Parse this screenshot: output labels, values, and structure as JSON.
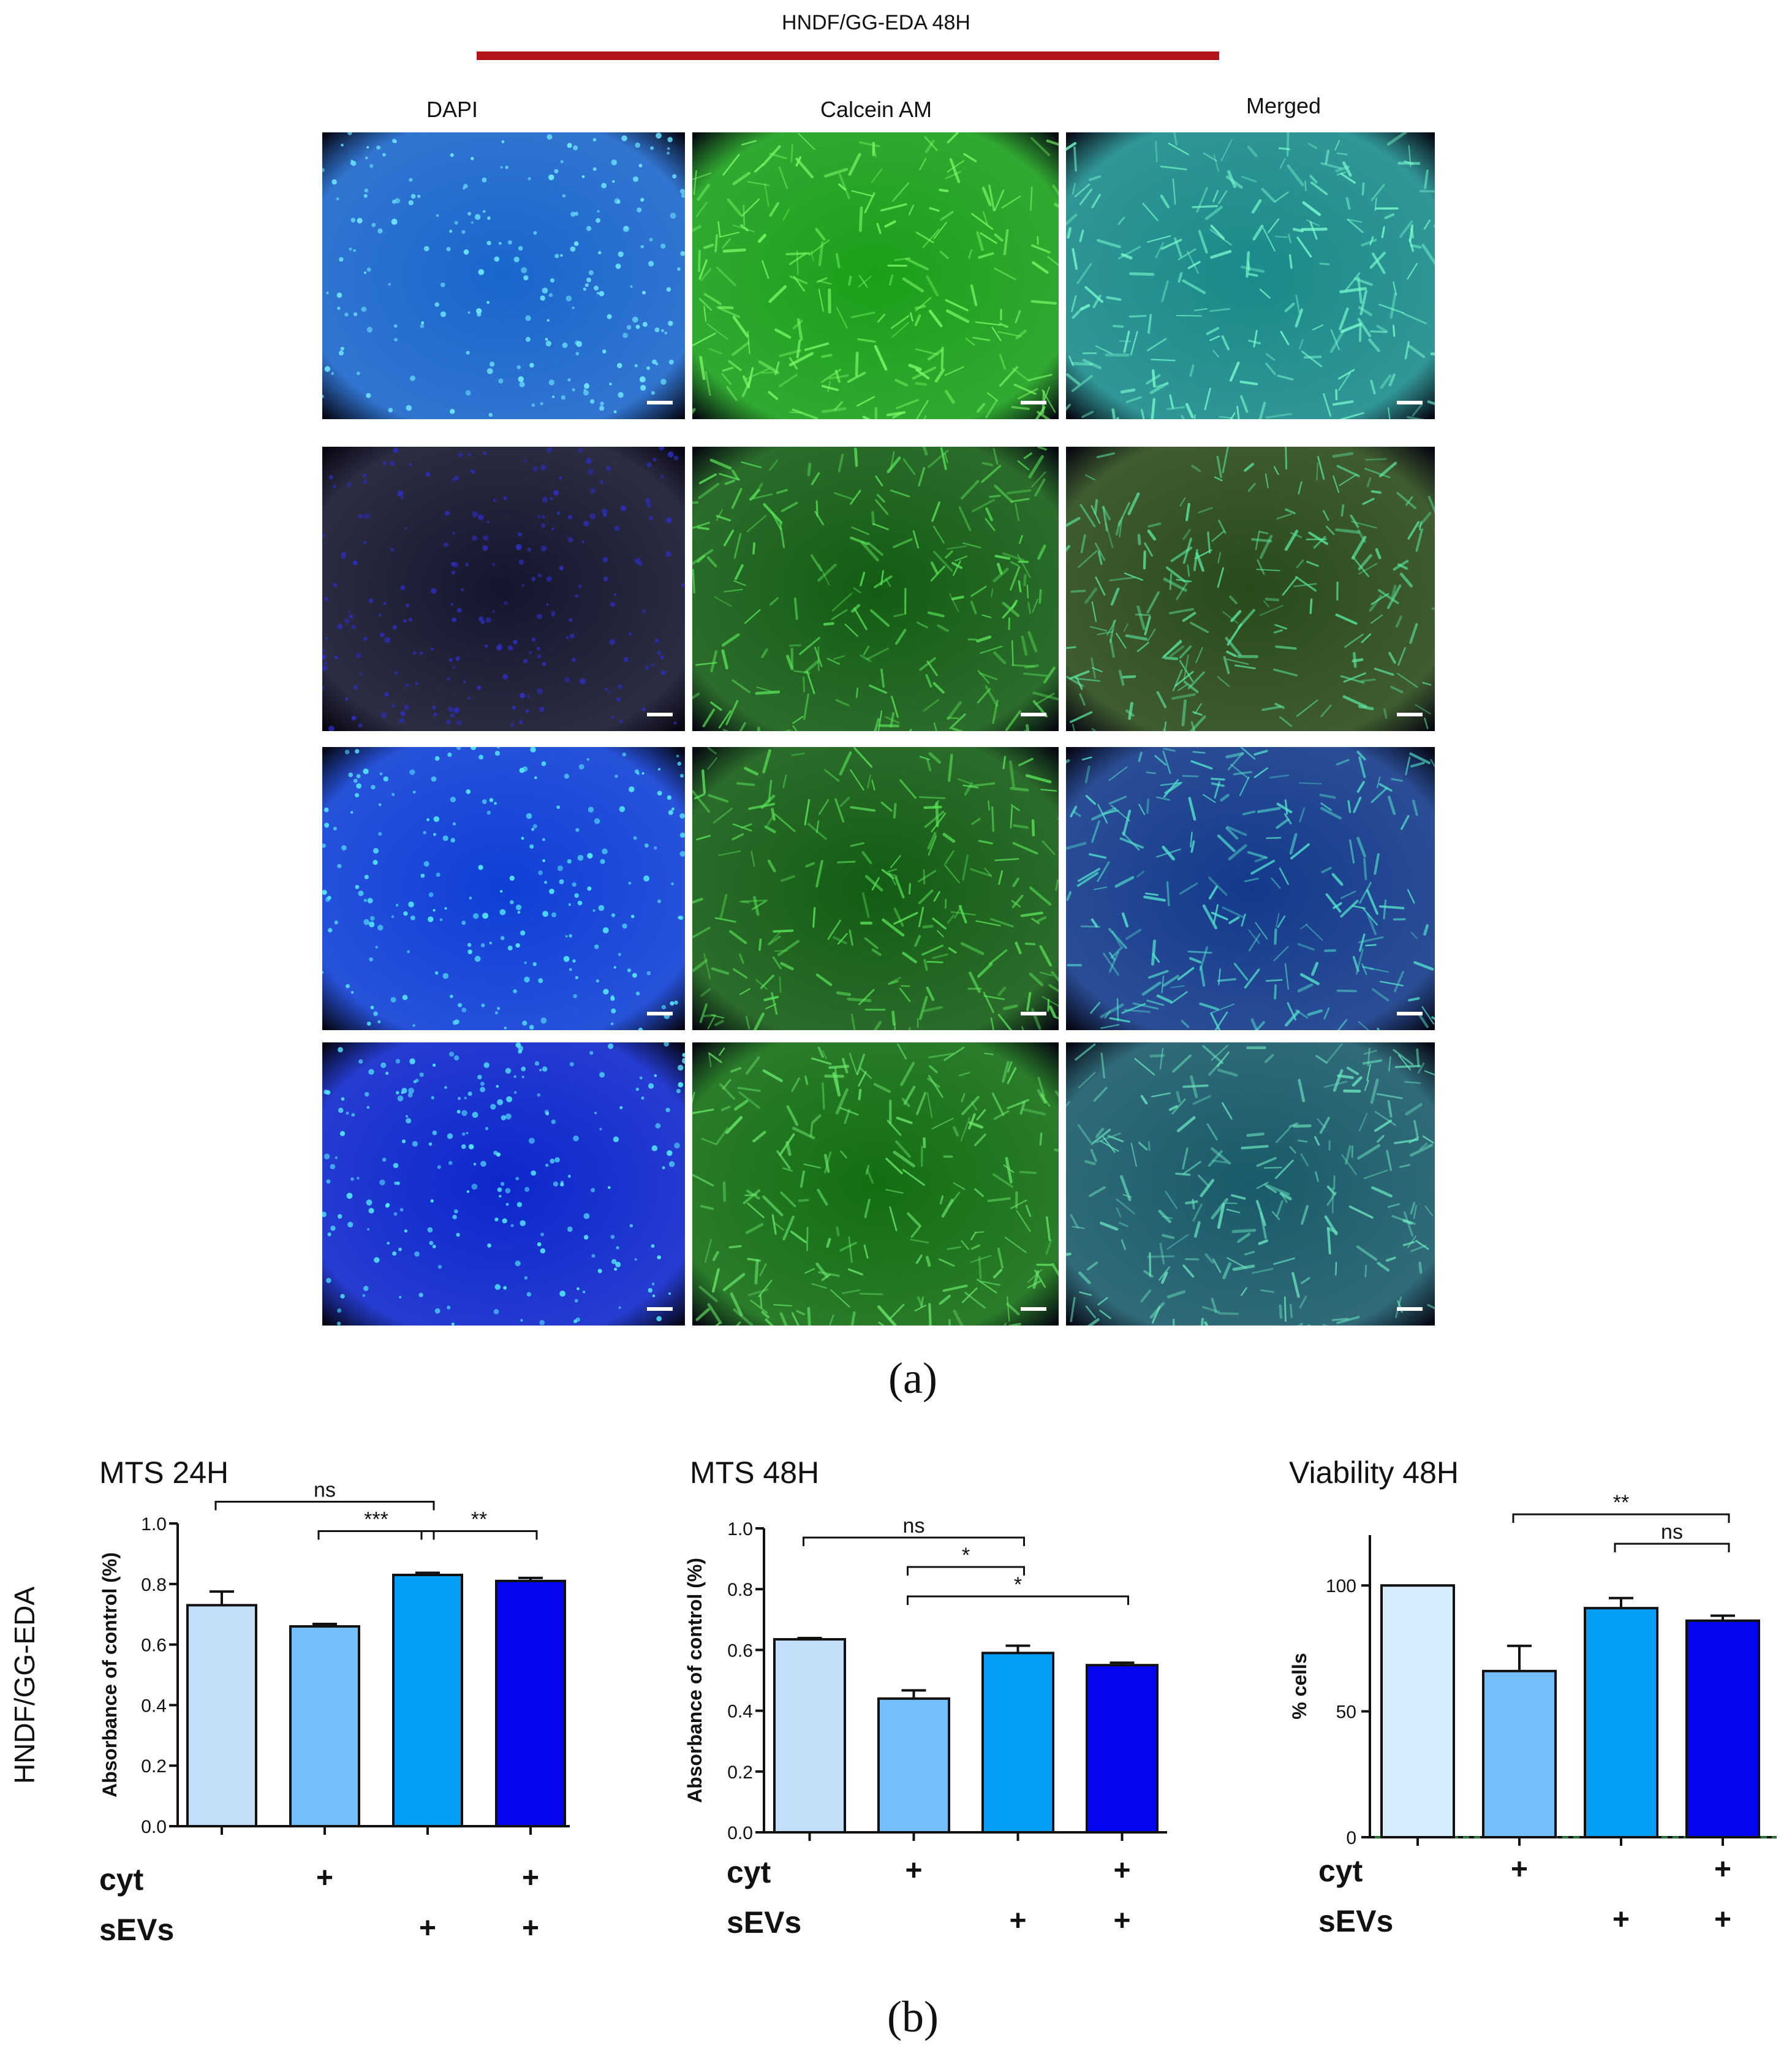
{
  "header": {
    "title": "HNDF/GG-EDA 48H",
    "columns": [
      "DAPI",
      "Calcein AM",
      "Merged"
    ],
    "accent_color": "#b3141b"
  },
  "panel_labels": {
    "a": "(a)",
    "b": "(b)"
  },
  "side_label": "HNDF/GG-EDA",
  "image_grid": {
    "rows": [
      {
        "cells": [
          {
            "channel": "DAPI",
            "bg": "#1a66cc",
            "dot": "#6fe8ff"
          },
          {
            "channel": "Calcein AM",
            "bg": "#1aa01a",
            "dot": "#7dff6a"
          },
          {
            "channel": "Merged",
            "bg": "#1a8a8a",
            "dot": "#7affd0"
          }
        ]
      },
      {
        "cells": [
          {
            "channel": "DAPI",
            "bg": "#15152e",
            "dot": "#2d2dbb"
          },
          {
            "channel": "Calcein AM",
            "bg": "#145c14",
            "dot": "#5ae85a"
          },
          {
            "channel": "Merged",
            "bg": "#2a4a1a",
            "dot": "#5ae8a0"
          }
        ]
      },
      {
        "cells": [
          {
            "channel": "DAPI",
            "bg": "#0f3fd6",
            "dot": "#55e8ff"
          },
          {
            "channel": "Calcein AM",
            "bg": "#145c14",
            "dot": "#5ae85a"
          },
          {
            "channel": "Merged",
            "bg": "#133a8a",
            "dot": "#55e8d0"
          }
        ]
      },
      {
        "cells": [
          {
            "channel": "DAPI",
            "bg": "#0d27cc",
            "dot": "#55e8ff"
          },
          {
            "channel": "Calcein AM",
            "bg": "#136e13",
            "dot": "#6ae86a"
          },
          {
            "channel": "Merged",
            "bg": "#1a5a6a",
            "dot": "#6ae8c0"
          }
        ]
      }
    ]
  },
  "chart_data": [
    {
      "type": "bar",
      "title": "MTS 24H",
      "ylabel": "Absorbance of control (%)",
      "ylim": [
        0,
        1.0
      ],
      "yticks": [
        "0.0",
        "0.2",
        "0.4",
        "0.6",
        "0.8",
        "1.0"
      ],
      "values": [
        0.73,
        0.66,
        0.83,
        0.81
      ],
      "errors": [
        0.045,
        0.008,
        0.007,
        0.01
      ],
      "colors": [
        "#c2def8",
        "#74befa",
        "#049ef8",
        "#0505f0"
      ],
      "factors": [
        {
          "label": "cyt",
          "marks": [
            "",
            "+",
            "",
            "+"
          ]
        },
        {
          "label": "sEVs",
          "marks": [
            "",
            "",
            "+",
            "+"
          ]
        }
      ],
      "brackets": [
        {
          "from": 0,
          "to": 2,
          "label": "ns",
          "level": 2
        },
        {
          "from": 1,
          "to": 2,
          "label": "***",
          "level": 1
        },
        {
          "from": 2,
          "to": 3,
          "label": "**",
          "level": 1
        }
      ]
    },
    {
      "type": "bar",
      "title": "MTS 48H",
      "ylabel": "Absorbance of control (%)",
      "ylim": [
        0,
        1.0
      ],
      "yticks": [
        "0.0",
        "0.2",
        "0.4",
        "0.6",
        "0.8",
        "1.0"
      ],
      "values": [
        0.635,
        0.44,
        0.59,
        0.55
      ],
      "errors": [
        0.004,
        0.027,
        0.024,
        0.008
      ],
      "colors": [
        "#c2def8",
        "#74befa",
        "#049ef8",
        "#0505f0"
      ],
      "factors": [
        {
          "label": "cyt",
          "marks": [
            "",
            "+",
            "",
            "+"
          ]
        },
        {
          "label": "sEVs",
          "marks": [
            "",
            "",
            "+",
            "+"
          ]
        }
      ],
      "brackets": [
        {
          "from": 0,
          "to": 2,
          "label": "ns",
          "level": 3
        },
        {
          "from": 1,
          "to": 2,
          "label": "*",
          "level": 2
        },
        {
          "from": 1,
          "to": 3,
          "label": "*",
          "level": 1
        }
      ]
    },
    {
      "type": "bar",
      "title": "Viability 48H",
      "ylabel": "% cells",
      "ylim": [
        0,
        120
      ],
      "yticks": [
        "0",
        "50",
        "100"
      ],
      "ytick_values": [
        0,
        50,
        100
      ],
      "values": [
        100,
        66,
        91,
        86
      ],
      "errors": [
        0,
        10,
        4,
        2
      ],
      "colors": [
        "#d4ecfc",
        "#74befa",
        "#049ef8",
        "#0505f0"
      ],
      "factors": [
        {
          "label": "cyt",
          "marks": [
            "",
            "+",
            "",
            "+"
          ]
        },
        {
          "label": "sEVs",
          "marks": [
            "",
            "",
            "+",
            "+"
          ]
        }
      ],
      "brackets": [
        {
          "from": 1,
          "to": 3,
          "label": "**",
          "level": 2
        },
        {
          "from": 2,
          "to": 3,
          "label": "ns",
          "level": 1
        }
      ]
    }
  ]
}
